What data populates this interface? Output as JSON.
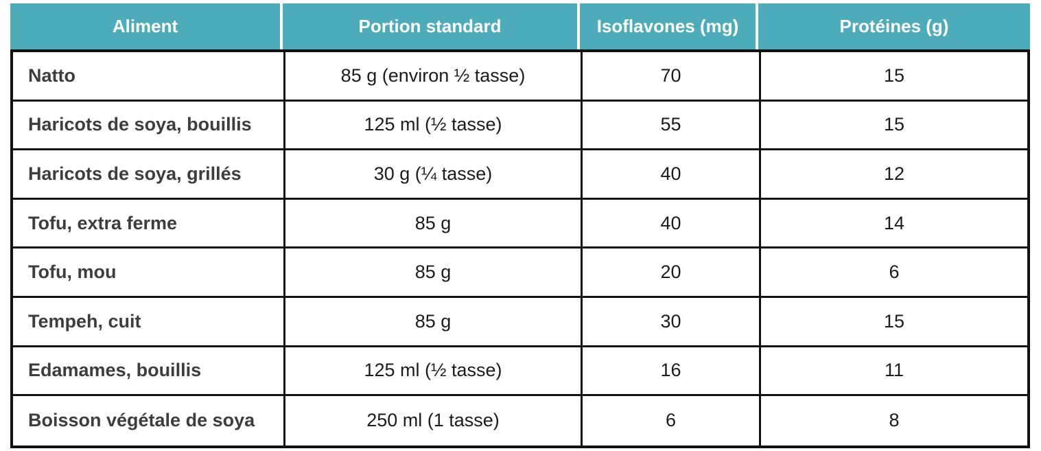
{
  "table": {
    "columns": [
      {
        "label": "Aliment"
      },
      {
        "label": "Portion standard"
      },
      {
        "label": "Isoflavones (mg)"
      },
      {
        "label": "Protéines (g)"
      }
    ],
    "rows": [
      {
        "aliment": "Natto",
        "portion": "85 g (environ ½ tasse)",
        "isoflavones": "70",
        "proteines": "15"
      },
      {
        "aliment": "Haricots de soya, bouillis",
        "portion": "125 ml (½ tasse)",
        "isoflavones": "55",
        "proteines": "15"
      },
      {
        "aliment": "Haricots de soya, grillés",
        "portion": "30 g (¼ tasse)",
        "isoflavones": "40",
        "proteines": "12"
      },
      {
        "aliment": "Tofu, extra ferme",
        "portion": "85 g",
        "isoflavones": "40",
        "proteines": "14"
      },
      {
        "aliment": "Tofu, mou",
        "portion": "85 g",
        "isoflavones": "20",
        "proteines": "6"
      },
      {
        "aliment": "Tempeh, cuit",
        "portion": "85 g",
        "isoflavones": "30",
        "proteines": "15"
      },
      {
        "aliment": "Edamames, bouillis",
        "portion": "125 ml (½ tasse)",
        "isoflavones": "16",
        "proteines": "11"
      },
      {
        "aliment": "Boisson végétale de soya",
        "portion": "250 ml (1 tasse)",
        "isoflavones": "6",
        "proteines": "8"
      }
    ]
  },
  "colors": {
    "header_bg": "#4CACB9",
    "header_text": "#FFFFFF",
    "body_border": "#111111",
    "row_label_text": "#3D3D3D",
    "cell_text": "#1B1B1B"
  }
}
